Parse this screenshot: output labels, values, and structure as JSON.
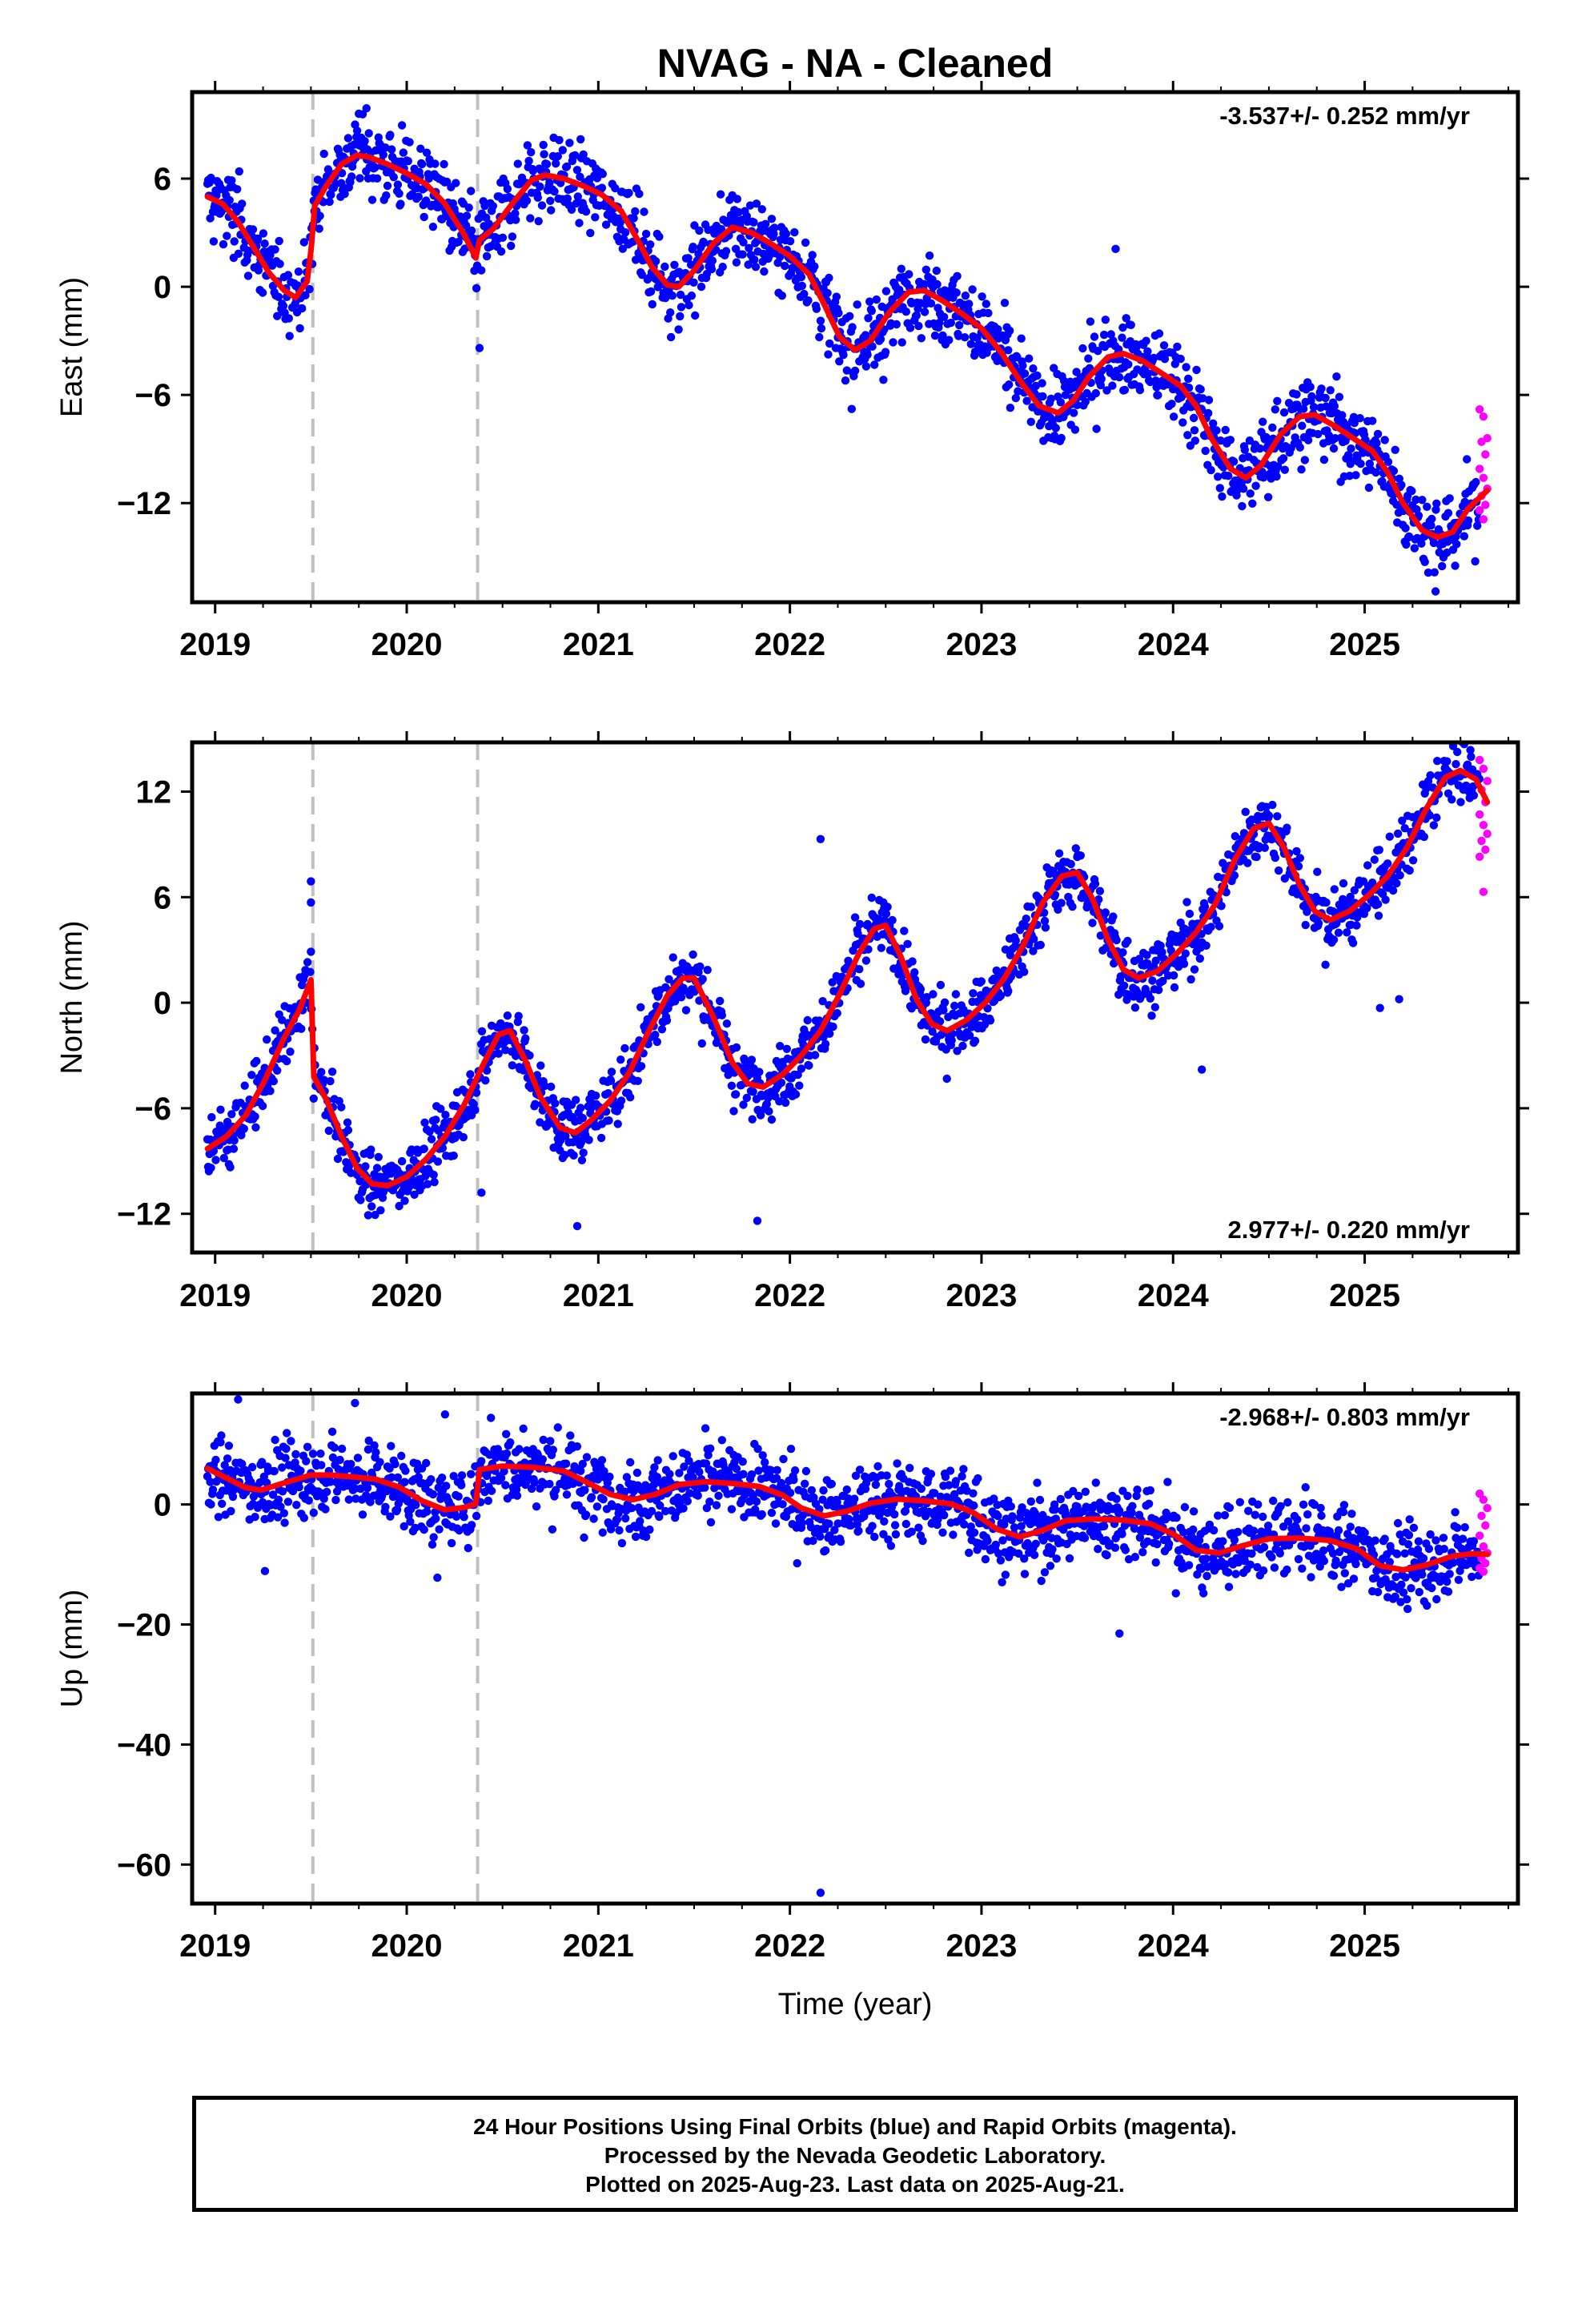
{
  "title": "NVAG  - NA - Cleaned",
  "xlabel": "Time (year)",
  "footer": {
    "line1": "24 Hour Positions Using Final Orbits (blue) and Rapid Orbits (magenta).",
    "line2": "Processed by the Nevada Geodetic Laboratory.",
    "line3": "Plotted on 2025-Aug-23. Last data on 2025-Aug-21."
  },
  "colors": {
    "final_orbits": "#0000ff",
    "rapid_orbits": "#ff00ff",
    "model": "#ff0000",
    "offset_lines": "#c0c0c0"
  },
  "chart_data": [
    {
      "type": "scatter",
      "name": "east",
      "ylabel": "East (mm)",
      "rate": "-3.537+/- 0.252 mm/yr",
      "rate_position": "top-right",
      "xlim": [
        2018.88,
        2025.8
      ],
      "ylim": [
        -17.5,
        10.8
      ],
      "x_ticks": [
        "2019",
        "2020",
        "2021",
        "2022",
        "2023",
        "2024",
        "2025"
      ],
      "y_ticks": [
        6,
        0,
        -6,
        -12
      ],
      "y_tick_labels": [
        "6",
        "0",
        "−6",
        "−12"
      ],
      "offset_epochs": [
        2019.51,
        2020.37
      ],
      "model_curve": [
        [
          2018.96,
          5.0
        ],
        [
          2019.04,
          4.6
        ],
        [
          2019.12,
          3.6
        ],
        [
          2019.2,
          2.2
        ],
        [
          2019.28,
          0.8
        ],
        [
          2019.36,
          -0.2
        ],
        [
          2019.42,
          -0.6
        ],
        [
          2019.48,
          0.3
        ],
        [
          2019.5,
          2.0
        ],
        [
          2019.52,
          4.5
        ],
        [
          2019.58,
          5.6
        ],
        [
          2019.66,
          6.8
        ],
        [
          2019.74,
          7.3
        ],
        [
          2019.8,
          7.2
        ],
        [
          2019.9,
          6.8
        ],
        [
          2020.0,
          6.3
        ],
        [
          2020.1,
          5.7
        ],
        [
          2020.2,
          4.6
        ],
        [
          2020.3,
          2.9
        ],
        [
          2020.36,
          1.6
        ],
        [
          2020.38,
          2.6
        ],
        [
          2020.45,
          3.2
        ],
        [
          2020.55,
          4.6
        ],
        [
          2020.65,
          5.9
        ],
        [
          2020.72,
          6.2
        ],
        [
          2020.82,
          6.0
        ],
        [
          2020.92,
          5.6
        ],
        [
          2021.02,
          5.1
        ],
        [
          2021.12,
          4.2
        ],
        [
          2021.2,
          2.7
        ],
        [
          2021.28,
          1.1
        ],
        [
          2021.36,
          0.1
        ],
        [
          2021.42,
          0.0
        ],
        [
          2021.5,
          0.9
        ],
        [
          2021.6,
          2.4
        ],
        [
          2021.7,
          3.3
        ],
        [
          2021.8,
          3.0
        ],
        [
          2021.9,
          2.4
        ],
        [
          2022.0,
          1.7
        ],
        [
          2022.1,
          0.7
        ],
        [
          2022.18,
          -1.0
        ],
        [
          2022.26,
          -2.8
        ],
        [
          2022.34,
          -3.5
        ],
        [
          2022.42,
          -3.0
        ],
        [
          2022.52,
          -1.4
        ],
        [
          2022.62,
          -0.3
        ],
        [
          2022.7,
          -0.2
        ],
        [
          2022.8,
          -0.8
        ],
        [
          2022.9,
          -1.5
        ],
        [
          2023.0,
          -2.3
        ],
        [
          2023.1,
          -3.6
        ],
        [
          2023.2,
          -5.2
        ],
        [
          2023.3,
          -6.6
        ],
        [
          2023.4,
          -7.0
        ],
        [
          2023.48,
          -6.3
        ],
        [
          2023.56,
          -5.0
        ],
        [
          2023.66,
          -3.9
        ],
        [
          2023.74,
          -3.7
        ],
        [
          2023.84,
          -4.1
        ],
        [
          2023.94,
          -4.8
        ],
        [
          2024.04,
          -5.5
        ],
        [
          2024.12,
          -6.6
        ],
        [
          2024.2,
          -8.4
        ],
        [
          2024.3,
          -10.1
        ],
        [
          2024.38,
          -10.6
        ],
        [
          2024.46,
          -9.9
        ],
        [
          2024.56,
          -8.2
        ],
        [
          2024.66,
          -7.2
        ],
        [
          2024.74,
          -7.1
        ],
        [
          2024.84,
          -7.7
        ],
        [
          2024.94,
          -8.4
        ],
        [
          2025.04,
          -9.1
        ],
        [
          2025.12,
          -10.3
        ],
        [
          2025.2,
          -12.0
        ],
        [
          2025.3,
          -13.5
        ],
        [
          2025.38,
          -13.9
        ],
        [
          2025.46,
          -13.6
        ],
        [
          2025.54,
          -12.3
        ],
        [
          2025.64,
          -11.3
        ]
      ],
      "noise_sd": 1.1,
      "rapid_x_range": [
        2025.6,
        2025.64
      ],
      "rapid_values": [
        -6.8,
        -7.2,
        -8.4,
        -8.6,
        -9.3,
        -10.1,
        -10.6,
        -11.2,
        -11.6,
        -12.1,
        -12.4,
        -12.9
      ],
      "outliers": [
        [
          2020.38,
          -3.4
        ],
        [
          2023.7,
          2.1
        ],
        [
          2025.37,
          -16.9
        ],
        [
          2019.75,
          9.6
        ],
        [
          2019.79,
          9.9
        ]
      ]
    },
    {
      "type": "scatter",
      "name": "north",
      "ylabel": "North (mm)",
      "rate": "2.977+/- 0.220 mm/yr",
      "rate_position": "bottom-right",
      "xlim": [
        2018.88,
        2025.8
      ],
      "ylim": [
        -14.2,
        14.8
      ],
      "x_ticks": [
        "2019",
        "2020",
        "2021",
        "2022",
        "2023",
        "2024",
        "2025"
      ],
      "y_ticks": [
        12,
        6,
        0,
        -6,
        -12
      ],
      "y_tick_labels": [
        "12",
        "6",
        "0",
        "−6",
        "−12"
      ],
      "offset_epochs": [
        2019.51,
        2020.37
      ],
      "model_curve": [
        [
          2018.96,
          -8.3
        ],
        [
          2019.06,
          -7.6
        ],
        [
          2019.16,
          -6.4
        ],
        [
          2019.26,
          -4.4
        ],
        [
          2019.36,
          -2.0
        ],
        [
          2019.44,
          -0.4
        ],
        [
          2019.5,
          1.3
        ],
        [
          2019.515,
          -4.2
        ],
        [
          2019.58,
          -5.5
        ],
        [
          2019.66,
          -7.6
        ],
        [
          2019.74,
          -9.4
        ],
        [
          2019.82,
          -10.3
        ],
        [
          2019.9,
          -10.4
        ],
        [
          2020.0,
          -9.9
        ],
        [
          2020.1,
          -8.9
        ],
        [
          2020.2,
          -7.6
        ],
        [
          2020.3,
          -5.8
        ],
        [
          2020.4,
          -3.5
        ],
        [
          2020.48,
          -1.8
        ],
        [
          2020.54,
          -1.6
        ],
        [
          2020.62,
          -3.3
        ],
        [
          2020.7,
          -5.4
        ],
        [
          2020.8,
          -7.1
        ],
        [
          2020.88,
          -7.4
        ],
        [
          2020.96,
          -6.7
        ],
        [
          2021.06,
          -5.6
        ],
        [
          2021.16,
          -4.0
        ],
        [
          2021.26,
          -1.7
        ],
        [
          2021.36,
          0.4
        ],
        [
          2021.44,
          1.4
        ],
        [
          2021.5,
          1.4
        ],
        [
          2021.6,
          -0.8
        ],
        [
          2021.7,
          -3.4
        ],
        [
          2021.78,
          -4.6
        ],
        [
          2021.86,
          -4.8
        ],
        [
          2021.96,
          -4.1
        ],
        [
          2022.06,
          -3.0
        ],
        [
          2022.16,
          -1.6
        ],
        [
          2022.26,
          0.5
        ],
        [
          2022.36,
          2.8
        ],
        [
          2022.44,
          4.2
        ],
        [
          2022.5,
          4.4
        ],
        [
          2022.58,
          2.6
        ],
        [
          2022.66,
          0.2
        ],
        [
          2022.74,
          -1.2
        ],
        [
          2022.82,
          -1.6
        ],
        [
          2022.92,
          -1.0
        ],
        [
          2023.02,
          0.0
        ],
        [
          2023.12,
          1.4
        ],
        [
          2023.22,
          3.3
        ],
        [
          2023.32,
          5.7
        ],
        [
          2023.42,
          7.2
        ],
        [
          2023.5,
          7.4
        ],
        [
          2023.58,
          5.9
        ],
        [
          2023.66,
          3.6
        ],
        [
          2023.74,
          1.9
        ],
        [
          2023.82,
          1.4
        ],
        [
          2023.92,
          1.8
        ],
        [
          2024.02,
          2.8
        ],
        [
          2024.12,
          4.0
        ],
        [
          2024.22,
          5.6
        ],
        [
          2024.32,
          8.1
        ],
        [
          2024.42,
          9.9
        ],
        [
          2024.5,
          10.2
        ],
        [
          2024.58,
          8.8
        ],
        [
          2024.66,
          6.7
        ],
        [
          2024.74,
          5.2
        ],
        [
          2024.82,
          4.7
        ],
        [
          2024.92,
          5.2
        ],
        [
          2025.02,
          6.1
        ],
        [
          2025.12,
          7.2
        ],
        [
          2025.22,
          8.8
        ],
        [
          2025.32,
          11.0
        ],
        [
          2025.42,
          12.8
        ],
        [
          2025.5,
          13.2
        ],
        [
          2025.58,
          12.7
        ],
        [
          2025.64,
          11.4
        ]
      ],
      "noise_sd": 0.9,
      "rapid_x_range": [
        2025.6,
        2025.64
      ],
      "rapid_values": [
        13.8,
        13.3,
        12.6,
        12.1,
        11.4,
        10.7,
        10.1,
        9.6,
        9.2,
        8.7,
        8.3,
        6.3
      ],
      "outliers": [
        [
          2019.5,
          6.9
        ],
        [
          2019.5,
          5.7
        ],
        [
          2019.5,
          2.9
        ],
        [
          2022.16,
          9.3
        ],
        [
          2021.83,
          -12.4
        ],
        [
          2020.89,
          -12.7
        ],
        [
          2024.15,
          -3.8
        ],
        [
          2025.08,
          -0.3
        ],
        [
          2025.18,
          0.2
        ],
        [
          2020.39,
          -10.8
        ]
      ]
    },
    {
      "type": "scatter",
      "name": "up",
      "ylabel": "Up (mm)",
      "rate": "-2.968+/- 0.803 mm/yr",
      "rate_position": "top-right",
      "xlim": [
        2018.88,
        2025.8
      ],
      "ylim": [
        -66.5,
        18.5
      ],
      "x_ticks": [
        "2019",
        "2020",
        "2021",
        "2022",
        "2023",
        "2024",
        "2025"
      ],
      "y_ticks": [
        0,
        -20,
        -40,
        -60
      ],
      "y_tick_labels": [
        "0",
        "−20",
        "−40",
        "−60"
      ],
      "offset_epochs": [
        2019.51,
        2020.37
      ],
      "model_curve": [
        [
          2018.96,
          6.0
        ],
        [
          2019.06,
          4.4
        ],
        [
          2019.16,
          2.8
        ],
        [
          2019.24,
          2.4
        ],
        [
          2019.34,
          3.4
        ],
        [
          2019.5,
          4.9
        ],
        [
          2019.6,
          4.9
        ],
        [
          2019.72,
          4.6
        ],
        [
          2019.84,
          4.2
        ],
        [
          2019.96,
          2.9
        ],
        [
          2020.08,
          0.6
        ],
        [
          2020.2,
          -0.9
        ],
        [
          2020.3,
          -0.5
        ],
        [
          2020.36,
          0.1
        ],
        [
          2020.38,
          5.8
        ],
        [
          2020.5,
          6.4
        ],
        [
          2020.66,
          6.2
        ],
        [
          2020.82,
          5.6
        ],
        [
          2020.94,
          3.7
        ],
        [
          2021.06,
          1.7
        ],
        [
          2021.18,
          0.8
        ],
        [
          2021.3,
          1.7
        ],
        [
          2021.42,
          3.3
        ],
        [
          2021.56,
          3.8
        ],
        [
          2021.7,
          3.5
        ],
        [
          2021.84,
          3.0
        ],
        [
          2021.96,
          1.6
        ],
        [
          2022.06,
          -0.6
        ],
        [
          2022.18,
          -1.9
        ],
        [
          2022.3,
          -1.1
        ],
        [
          2022.42,
          0.2
        ],
        [
          2022.56,
          0.9
        ],
        [
          2022.7,
          0.6
        ],
        [
          2022.84,
          0.1
        ],
        [
          2022.96,
          -1.4
        ],
        [
          2023.08,
          -4.1
        ],
        [
          2023.2,
          -5.4
        ],
        [
          2023.32,
          -4.3
        ],
        [
          2023.44,
          -2.7
        ],
        [
          2023.58,
          -2.4
        ],
        [
          2023.74,
          -2.6
        ],
        [
          2023.88,
          -3.2
        ],
        [
          2024.0,
          -4.9
        ],
        [
          2024.12,
          -7.6
        ],
        [
          2024.24,
          -8.1
        ],
        [
          2024.36,
          -6.9
        ],
        [
          2024.5,
          -5.7
        ],
        [
          2024.66,
          -5.6
        ],
        [
          2024.82,
          -6.0
        ],
        [
          2024.96,
          -7.4
        ],
        [
          2025.08,
          -10.2
        ],
        [
          2025.2,
          -10.9
        ],
        [
          2025.32,
          -10.1
        ],
        [
          2025.46,
          -8.6
        ],
        [
          2025.56,
          -8.2
        ],
        [
          2025.64,
          -8.3
        ]
      ],
      "noise_sd": 3.2,
      "rapid_x_range": [
        2025.6,
        2025.64
      ],
      "rapid_values": [
        1.8,
        0.8,
        -0.6,
        -1.9,
        -3.5,
        -5.2,
        -7.0,
        -8.1,
        -8.9,
        -9.8,
        -10.6,
        -11.2
      ],
      "outliers": [
        [
          2019.12,
          17.5
        ],
        [
          2019.73,
          16.9
        ],
        [
          2020.2,
          15.0
        ],
        [
          2023.72,
          -21.5
        ],
        [
          2022.16,
          -64.7
        ],
        [
          2019.26,
          -11.1
        ],
        [
          2020.16,
          -12.2
        ]
      ]
    }
  ]
}
